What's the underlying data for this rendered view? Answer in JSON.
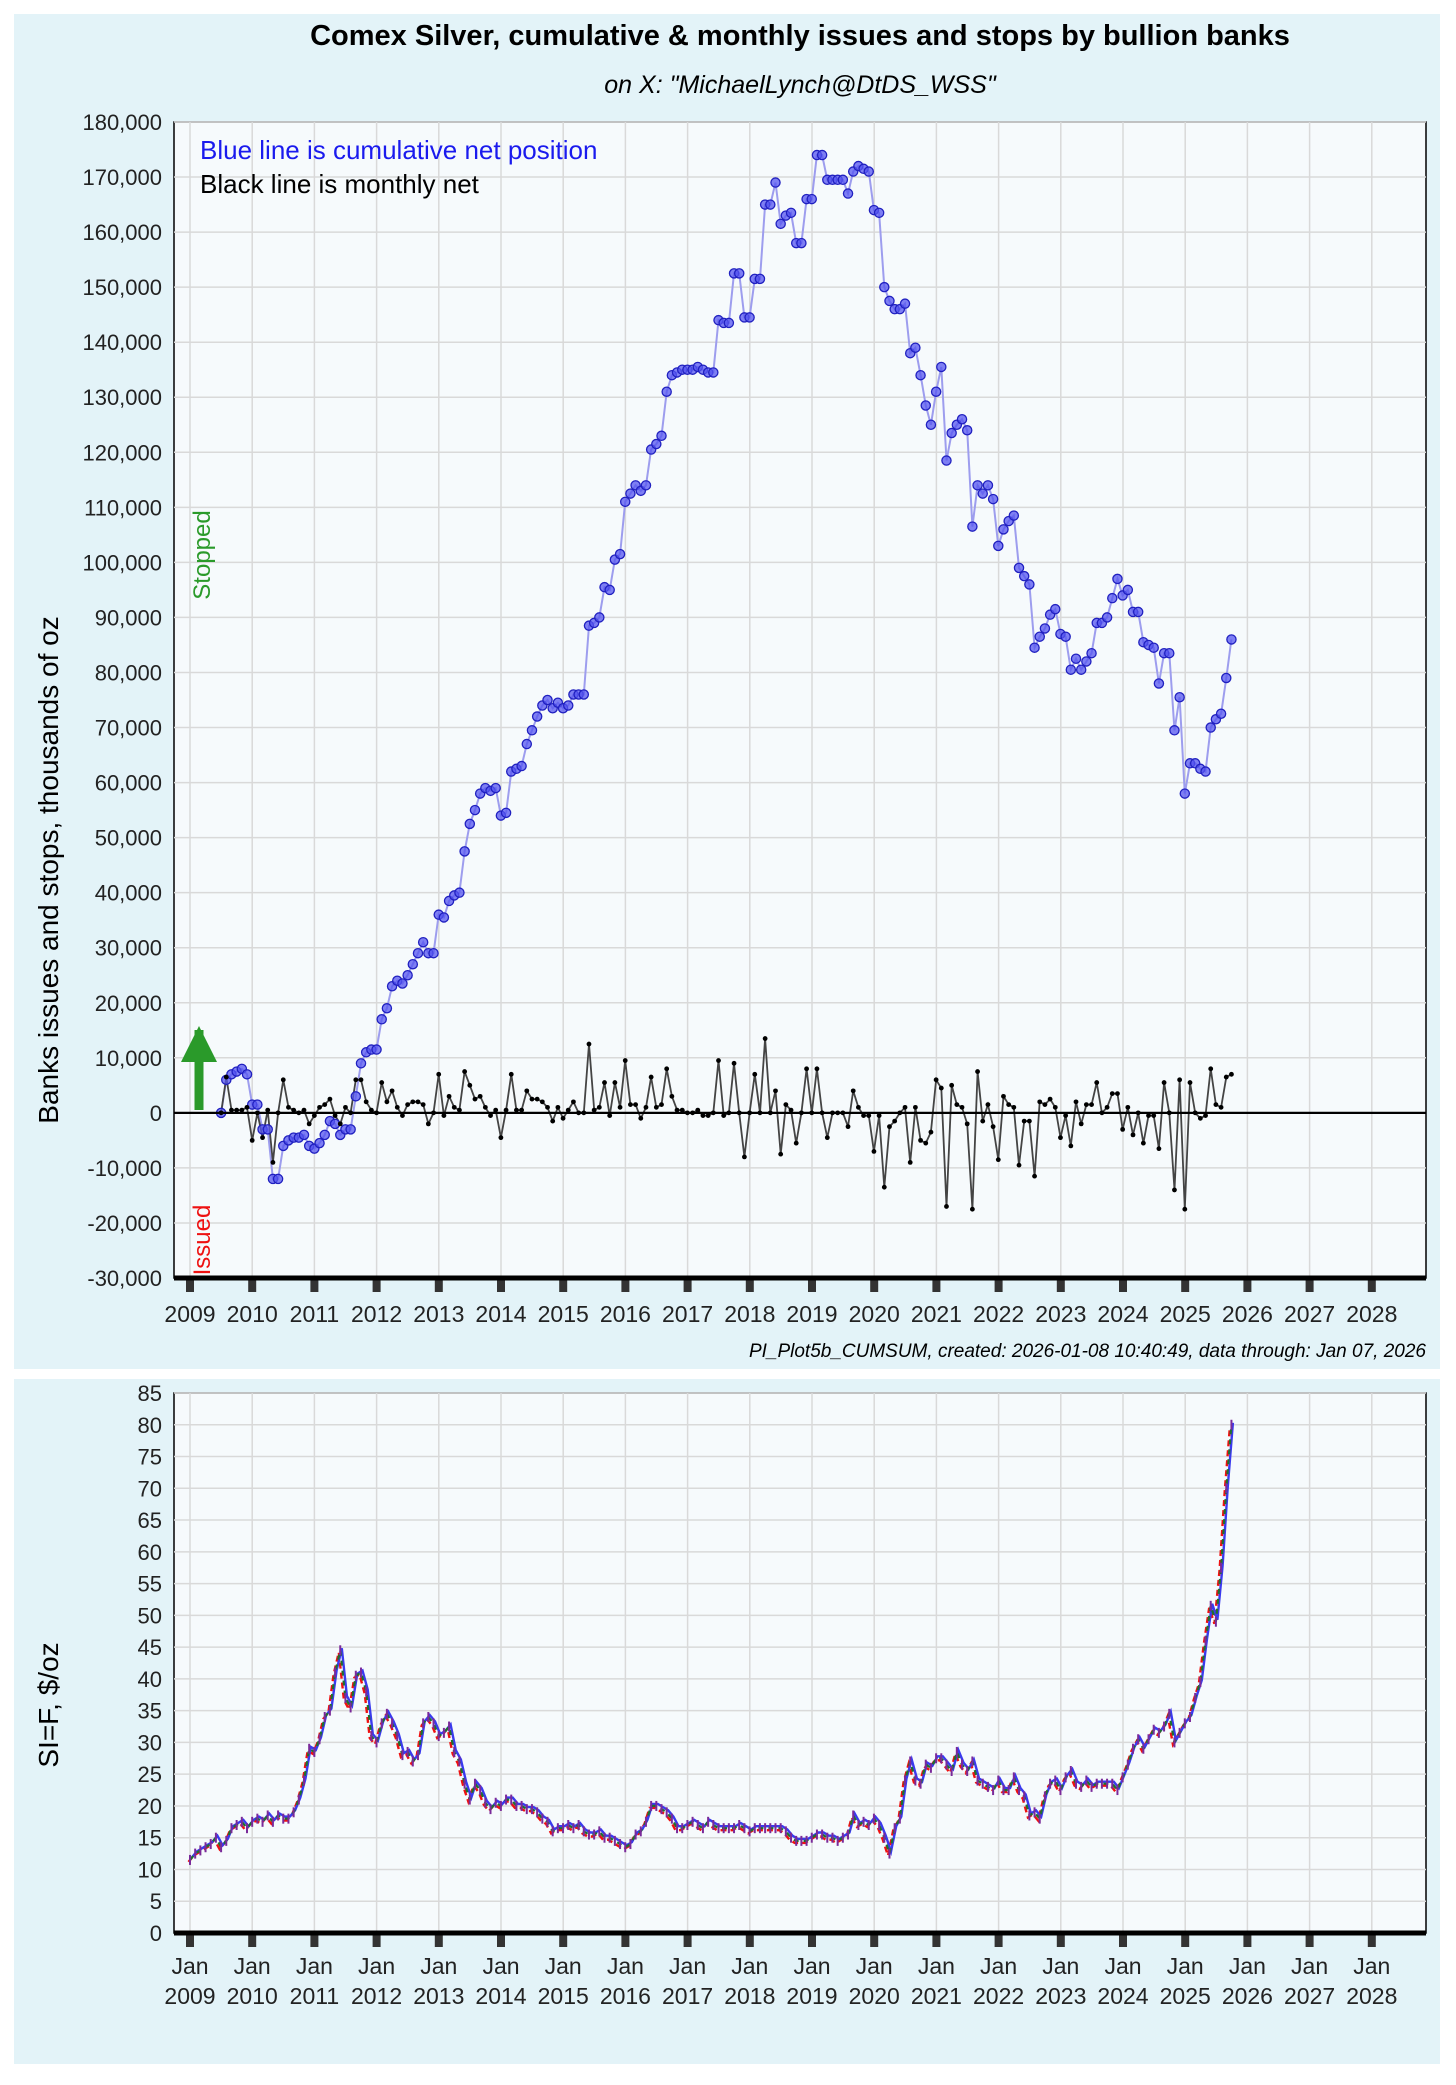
{
  "header": {
    "title": "Comex Silver, cumulative & monthly issues and stops by bullion banks",
    "subtitle": "on X:   \"MichaelLynch@DtDS_WSS\""
  },
  "caption": "PI_Plot5b_CUMSUM, created: 2026-01-08 10:40:49, data through: Jan 07, 2026",
  "colors": {
    "panel_bg": "#e3f3f8",
    "plot_bg": "#f6fafc",
    "grid": "#d9d9d9",
    "blue": "#3a3aee",
    "blue_line": "#9d9dee",
    "black": "#000000",
    "green": "#2a9a2a",
    "red": "#ee1111"
  },
  "chart_data": [
    {
      "type": "line",
      "title": "Comex Silver, cumulative & monthly issues and stops by bullion banks",
      "ylabel": "Banks issues and stops, thousands of oz",
      "ylim": [
        -30000,
        180000
      ],
      "xlim": [
        2008.8,
        2028.0
      ],
      "x_tick_labels": [
        "2009",
        "2010",
        "2011",
        "2012",
        "2013",
        "2014",
        "2015",
        "2016",
        "2017",
        "2018",
        "2019",
        "2020",
        "2021",
        "2022",
        "2023",
        "2024",
        "2025",
        "2026",
        "2027",
        "2028"
      ],
      "y_ticks": [
        -30000,
        -20000,
        -10000,
        0,
        10000,
        20000,
        30000,
        40000,
        50000,
        60000,
        70000,
        80000,
        90000,
        100000,
        110000,
        120000,
        130000,
        140000,
        150000,
        160000,
        170000,
        180000
      ],
      "y_tick_labels": [
        "-30,000",
        "-20,000",
        "-10,000",
        "0",
        "10,000",
        "20,000",
        "30,000",
        "40,000",
        "50,000",
        "60,000",
        "70,000",
        "80,000",
        "90,000",
        "100,000",
        "110,000",
        "120,000",
        "130,000",
        "140,000",
        "150,000",
        "160,000",
        "170,000",
        "180,000"
      ],
      "grid": true,
      "legend_text": [
        "Blue line is cumulative net position",
        "Black line is monthly net"
      ],
      "side_labels": {
        "top": "Stopped",
        "bottom": "Issued"
      },
      "start_x": 2009.5,
      "step": 0.0833,
      "series": [
        {
          "name": "Blue line is cumulative net position",
          "color": "#3a3aee",
          "values": [
            0,
            6000,
            7000,
            7500,
            8000,
            7000,
            1500,
            1500,
            -3000,
            -3000,
            -12000,
            -12000,
            -6000,
            -5000,
            -4500,
            -4500,
            -4000,
            -6000,
            -6500,
            -5500,
            -4000,
            -1500,
            -2000,
            -4000,
            -3000,
            -3000,
            3000,
            9000,
            11000,
            11500,
            11500,
            17000,
            19000,
            23000,
            24000,
            23500,
            25000,
            27000,
            29000,
            31000,
            29000,
            29000,
            36000,
            35500,
            38500,
            39500,
            40000,
            47500,
            52500,
            55000,
            58000,
            59000,
            58500,
            59000,
            54000,
            54500,
            62000,
            62500,
            63000,
            67000,
            69500,
            72000,
            74000,
            75000,
            73500,
            74500,
            73500,
            74000,
            76000,
            76000,
            76000,
            88500,
            89000,
            90000,
            95500,
            95000,
            100500,
            101500,
            111000,
            112500,
            114000,
            113000,
            114000,
            120500,
            121500,
            123000,
            131000,
            134000,
            134500,
            135000,
            135000,
            135000,
            135500,
            135000,
            134500,
            134500,
            144000,
            143500,
            143500,
            152500,
            152500,
            144500,
            144500,
            151500,
            151500,
            165000,
            165000,
            169000,
            161500,
            163000,
            163500,
            158000,
            158000,
            166000,
            166000,
            174000,
            174000,
            169500,
            169500,
            169500,
            169500,
            167000,
            171000,
            172000,
            171500,
            171000,
            164000,
            163500,
            150000,
            147500,
            146000,
            146000,
            147000,
            138000,
            139000,
            134000,
            128500,
            125000,
            131000,
            135500,
            118500,
            123500,
            125000,
            126000,
            124000,
            106500,
            114000,
            112500,
            114000,
            111500,
            103000,
            106000,
            107500,
            108500,
            99000,
            97500,
            96000,
            84500,
            86500,
            88000,
            90500,
            91500,
            87000,
            86500,
            80500,
            82500,
            80500,
            82000,
            83500,
            89000,
            89000,
            90000,
            93500,
            97000,
            94000,
            95000,
            91000,
            91000,
            85500,
            85000,
            84500,
            78000,
            83500,
            83500,
            69500,
            75500,
            58000,
            63500,
            63500,
            62500,
            62000,
            70000,
            71500,
            72500,
            79000,
            86000
          ]
        },
        {
          "name": "Black line is monthly net",
          "color": "#000000",
          "values": [
            0,
            6500,
            500,
            500,
            500,
            1000,
            -5000,
            0,
            -4500,
            500,
            -9000,
            0,
            6000,
            1000,
            500,
            0,
            500,
            -2000,
            -500,
            1000,
            1500,
            2500,
            -500,
            -2000,
            1000,
            0,
            6000,
            6000,
            2000,
            500,
            0,
            5500,
            2000,
            4000,
            1000,
            -500,
            1500,
            2000,
            2000,
            1500,
            -2000,
            0,
            7000,
            -500,
            3000,
            1000,
            500,
            7500,
            5000,
            2500,
            3000,
            1000,
            -500,
            500,
            -4500,
            500,
            7000,
            500,
            500,
            4000,
            2500,
            2500,
            2000,
            1000,
            -1500,
            1000,
            -1000,
            500,
            2000,
            0,
            0,
            12500,
            500,
            1000,
            5500,
            -500,
            5500,
            1000,
            9500,
            1500,
            1500,
            -1000,
            1000,
            6500,
            1000,
            1500,
            8000,
            3000,
            500,
            500,
            0,
            0,
            500,
            -500,
            -500,
            0,
            9500,
            -500,
            0,
            9000,
            0,
            -8000,
            0,
            7000,
            0,
            13500,
            0,
            4000,
            -7500,
            1500,
            500,
            -5500,
            0,
            8000,
            0,
            8000,
            0,
            -4500,
            0,
            0,
            0,
            -2500,
            4000,
            1000,
            -500,
            -500,
            -7000,
            -500,
            -13500,
            -2500,
            -1500,
            0,
            1000,
            -9000,
            1000,
            -5000,
            -5500,
            -3500,
            6000,
            4500,
            -17000,
            5000,
            1500,
            1000,
            -2000,
            -17500,
            7500,
            -1500,
            1500,
            -2500,
            -8500,
            3000,
            1500,
            1000,
            -9500,
            -1500,
            -1500,
            -11500,
            2000,
            1500,
            2500,
            1000,
            -4500,
            -500,
            -6000,
            2000,
            -2000,
            1500,
            1500,
            5500,
            0,
            1000,
            3500,
            3500,
            -3000,
            1000,
            -4000,
            0,
            -5500,
            -500,
            -500,
            -6500,
            5500,
            0,
            -14000,
            6000,
            -17500,
            5500,
            0,
            -1000,
            -500,
            8000,
            1500,
            1000,
            6500,
            7000
          ]
        }
      ]
    },
    {
      "type": "line",
      "ylabel": "SI=F,  $/oz",
      "ylim": [
        0,
        85
      ],
      "y_ticks": [
        0,
        5,
        10,
        15,
        20,
        25,
        30,
        35,
        40,
        45,
        50,
        55,
        60,
        65,
        70,
        75,
        80,
        85
      ],
      "x_tick_labels": [
        "Jan\n2009",
        "Jan\n2010",
        "Jan\n2011",
        "Jan\n2012",
        "Jan\n2013",
        "Jan\n2014",
        "Jan\n2015",
        "Jan\n2016",
        "Jan\n2017",
        "Jan\n2018",
        "Jan\n2019",
        "Jan\n2020",
        "Jan\n2021",
        "Jan\n2022",
        "Jan\n2023",
        "Jan\n2024",
        "Jan\n2025",
        "Jan\n2026",
        "Jan\n2027",
        "Jan\n2028"
      ],
      "grid": true,
      "start_x": 2009.0,
      "step": 0.0833,
      "series": [
        {
          "name": "SI=F",
          "color": "#3a3aee",
          "values": [
            11.5,
            12.5,
            13.0,
            13.5,
            14.0,
            15.0,
            13.5,
            14.5,
            16.5,
            17.0,
            17.5,
            16.5,
            17.5,
            18.0,
            17.5,
            18.5,
            17.5,
            18.5,
            18.0,
            18.0,
            19.0,
            21.0,
            24.0,
            29.0,
            28.5,
            30.5,
            34.0,
            35.0,
            41.0,
            44.5,
            37.0,
            35.5,
            40.5,
            41.0,
            38.0,
            31.0,
            30.0,
            33.0,
            34.5,
            33.0,
            31.0,
            28.0,
            28.5,
            27.0,
            28.0,
            33.0,
            34.0,
            33.0,
            31.0,
            31.5,
            32.5,
            28.5,
            27.0,
            23.5,
            21.0,
            23.5,
            22.5,
            20.5,
            19.5,
            20.5,
            20.0,
            21.0,
            21.0,
            20.0,
            20.0,
            19.5,
            19.5,
            19.0,
            18.0,
            17.5,
            16.0,
            16.5,
            16.5,
            17.0,
            16.5,
            17.0,
            16.0,
            15.5,
            15.5,
            16.0,
            15.0,
            15.0,
            14.5,
            14.0,
            13.5,
            14.0,
            15.5,
            16.0,
            17.5,
            20.0,
            20.0,
            19.5,
            19.0,
            18.0,
            16.5,
            16.5,
            17.0,
            17.5,
            17.0,
            16.5,
            17.5,
            17.0,
            16.5,
            16.5,
            16.5,
            16.5,
            17.0,
            16.5,
            16.0,
            16.5,
            16.5,
            16.5,
            16.5,
            16.5,
            16.5,
            16.0,
            15.0,
            14.5,
            14.5,
            14.5,
            15.0,
            15.5,
            15.5,
            15.0,
            15.0,
            14.5,
            15.0,
            15.5,
            18.5,
            17.0,
            17.5,
            17.0,
            18.0,
            17.0,
            15.0,
            12.5,
            16.5,
            18.0,
            24.0,
            27.0,
            24.0,
            23.5,
            26.5,
            26.0,
            27.5,
            27.5,
            26.5,
            25.5,
            28.5,
            26.5,
            25.5,
            27.0,
            24.0,
            23.5,
            23.0,
            22.5,
            24.0,
            22.5,
            22.5,
            24.5,
            22.5,
            21.5,
            18.5,
            19.0,
            18.0,
            21.5,
            23.5,
            24.0,
            22.5,
            24.5,
            25.5,
            23.5,
            23.0,
            24.0,
            23.0,
            23.5,
            23.5,
            23.5,
            23.5,
            22.5,
            24.5,
            26.5,
            29.0,
            30.5,
            29.0,
            30.5,
            32.0,
            31.5,
            32.5,
            34.5,
            30.0,
            31.5,
            33.0,
            34.0,
            37.0,
            39.5,
            46.0,
            51.5,
            49.0,
            57.5,
            70.0,
            80.0
          ]
        }
      ]
    }
  ]
}
